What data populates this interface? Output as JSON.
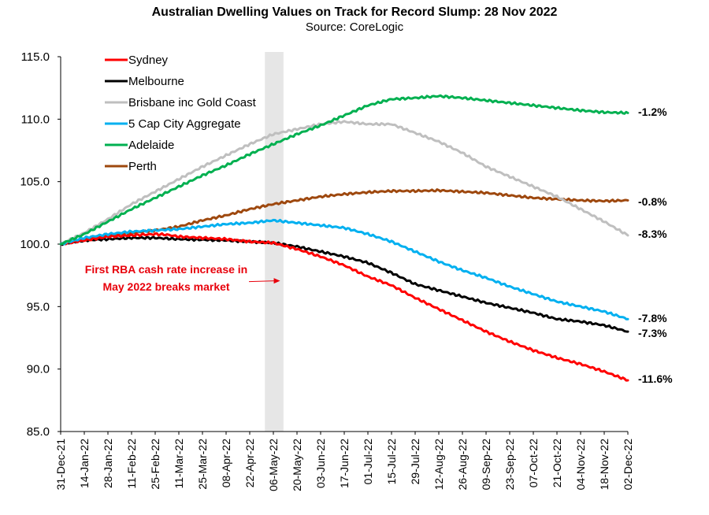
{
  "chart_data": {
    "type": "line",
    "title": "Australian Dwelling Values on Track for Record Slump: 28 Nov 2022",
    "subtitle": "Source: CoreLogic",
    "ylim": [
      85,
      115
    ],
    "yticks": [
      "85.0",
      "90.0",
      "95.0",
      "100.0",
      "105.0",
      "110.0",
      "115.0"
    ],
    "xrange_days": [
      0,
      336
    ],
    "xticks": [
      {
        "label": "31-Dec-21",
        "day": 0
      },
      {
        "label": "14-Jan-22",
        "day": 14
      },
      {
        "label": "28-Jan-22",
        "day": 28
      },
      {
        "label": "11-Feb-22",
        "day": 42
      },
      {
        "label": "25-Feb-22",
        "day": 56
      },
      {
        "label": "11-Mar-22",
        "day": 70
      },
      {
        "label": "25-Mar-22",
        "day": 84
      },
      {
        "label": "08-Apr-22",
        "day": 98
      },
      {
        "label": "22-Apr-22",
        "day": 112
      },
      {
        "label": "06-May-22",
        "day": 126
      },
      {
        "label": "20-May-22",
        "day": 140
      },
      {
        "label": "03-Jun-22",
        "day": 154
      },
      {
        "label": "17-Jun-22",
        "day": 168
      },
      {
        "label": "01-Jul-22",
        "day": 182
      },
      {
        "label": "15-Jul-22",
        "day": 196
      },
      {
        "label": "29-Jul-22",
        "day": 210
      },
      {
        "label": "12-Aug-22",
        "day": 224
      },
      {
        "label": "26-Aug-22",
        "day": 238
      },
      {
        "label": "09-Sep-22",
        "day": 252
      },
      {
        "label": "23-Sep-22",
        "day": 266
      },
      {
        "label": "07-Oct-22",
        "day": 280
      },
      {
        "label": "21-Oct-22",
        "day": 294
      },
      {
        "label": "04-Nov-22",
        "day": 308
      },
      {
        "label": "18-Nov-22",
        "day": 322
      },
      {
        "label": "02-Dec-22",
        "day": 336
      }
    ],
    "highlight_band_days": [
      121,
      132
    ],
    "annotation": {
      "line1": "First RBA cash rate increase in",
      "line2": "May 2022 breaks market",
      "arrow_to_day": 130,
      "arrow_at_value": 97.0
    },
    "series": [
      {
        "name": "Sydney",
        "color": "#ff0000",
        "end_label": "-11.6%",
        "points": [
          [
            0,
            100.0
          ],
          [
            14,
            100.3
          ],
          [
            28,
            100.6
          ],
          [
            42,
            100.7
          ],
          [
            56,
            100.8
          ],
          [
            63,
            100.75
          ],
          [
            70,
            100.6
          ],
          [
            84,
            100.5
          ],
          [
            98,
            100.4
          ],
          [
            105,
            100.3
          ],
          [
            112,
            100.2
          ],
          [
            126,
            100.1
          ],
          [
            140,
            99.6
          ],
          [
            154,
            99.0
          ],
          [
            168,
            98.3
          ],
          [
            182,
            97.4
          ],
          [
            196,
            96.7
          ],
          [
            210,
            95.7
          ],
          [
            224,
            94.8
          ],
          [
            238,
            93.9
          ],
          [
            252,
            93.0
          ],
          [
            266,
            92.2
          ],
          [
            280,
            91.5
          ],
          [
            294,
            90.9
          ],
          [
            308,
            90.4
          ],
          [
            322,
            89.8
          ],
          [
            336,
            89.1
          ]
        ]
      },
      {
        "name": "Melbourne",
        "color": "#000000",
        "end_label": "-7.3%",
        "points": [
          [
            0,
            100.0
          ],
          [
            14,
            100.3
          ],
          [
            28,
            100.4
          ],
          [
            42,
            100.5
          ],
          [
            56,
            100.5
          ],
          [
            70,
            100.4
          ],
          [
            84,
            100.35
          ],
          [
            98,
            100.3
          ],
          [
            112,
            100.2
          ],
          [
            126,
            100.1
          ],
          [
            140,
            99.8
          ],
          [
            154,
            99.4
          ],
          [
            168,
            99.0
          ],
          [
            182,
            98.5
          ],
          [
            196,
            97.7
          ],
          [
            210,
            96.8
          ],
          [
            224,
            96.3
          ],
          [
            238,
            95.8
          ],
          [
            252,
            95.3
          ],
          [
            266,
            94.9
          ],
          [
            280,
            94.5
          ],
          [
            294,
            94.0
          ],
          [
            308,
            93.8
          ],
          [
            322,
            93.5
          ],
          [
            336,
            93.0
          ]
        ]
      },
      {
        "name": "Brisbane inc Gold Coast",
        "color": "#bfbfbf",
        "end_label": "-8.3%",
        "points": [
          [
            0,
            100.0
          ],
          [
            14,
            100.9
          ],
          [
            28,
            102.0
          ],
          [
            42,
            103.2
          ],
          [
            56,
            104.2
          ],
          [
            70,
            105.2
          ],
          [
            84,
            106.2
          ],
          [
            98,
            107.1
          ],
          [
            112,
            108.0
          ],
          [
            126,
            108.8
          ],
          [
            140,
            109.2
          ],
          [
            154,
            109.6
          ],
          [
            168,
            109.8
          ],
          [
            182,
            109.6
          ],
          [
            196,
            109.6
          ],
          [
            210,
            108.9
          ],
          [
            224,
            108.2
          ],
          [
            238,
            107.3
          ],
          [
            252,
            106.2
          ],
          [
            266,
            105.4
          ],
          [
            280,
            104.6
          ],
          [
            294,
            103.8
          ],
          [
            308,
            102.8
          ],
          [
            322,
            101.8
          ],
          [
            336,
            100.7
          ]
        ]
      },
      {
        "name": "5 Cap City Aggregate",
        "color": "#00b0f0",
        "end_label": "-7.8%",
        "points": [
          [
            0,
            100.0
          ],
          [
            14,
            100.5
          ],
          [
            28,
            100.8
          ],
          [
            42,
            101.0
          ],
          [
            56,
            101.1
          ],
          [
            70,
            101.2
          ],
          [
            84,
            101.4
          ],
          [
            98,
            101.6
          ],
          [
            112,
            101.7
          ],
          [
            126,
            101.9
          ],
          [
            140,
            101.7
          ],
          [
            154,
            101.5
          ],
          [
            168,
            101.3
          ],
          [
            182,
            100.8
          ],
          [
            196,
            100.2
          ],
          [
            210,
            99.4
          ],
          [
            224,
            98.6
          ],
          [
            238,
            97.9
          ],
          [
            252,
            97.3
          ],
          [
            266,
            96.6
          ],
          [
            280,
            96.0
          ],
          [
            294,
            95.4
          ],
          [
            308,
            95.0
          ],
          [
            322,
            94.6
          ],
          [
            336,
            94.0
          ]
        ]
      },
      {
        "name": "Adelaide",
        "color": "#00b050",
        "end_label": "-1.2%",
        "points": [
          [
            0,
            100.0
          ],
          [
            14,
            100.8
          ],
          [
            28,
            101.8
          ],
          [
            42,
            102.8
          ],
          [
            56,
            103.7
          ],
          [
            70,
            104.6
          ],
          [
            84,
            105.5
          ],
          [
            98,
            106.3
          ],
          [
            112,
            107.2
          ],
          [
            126,
            108.0
          ],
          [
            140,
            108.8
          ],
          [
            154,
            109.5
          ],
          [
            168,
            110.3
          ],
          [
            182,
            111.1
          ],
          [
            196,
            111.6
          ],
          [
            210,
            111.7
          ],
          [
            224,
            111.85
          ],
          [
            238,
            111.7
          ],
          [
            252,
            111.5
          ],
          [
            266,
            111.3
          ],
          [
            280,
            111.1
          ],
          [
            294,
            110.9
          ],
          [
            308,
            110.7
          ],
          [
            322,
            110.55
          ],
          [
            336,
            110.5
          ]
        ]
      },
      {
        "name": "Perth",
        "color": "#9e480e",
        "end_label": "-0.8%",
        "points": [
          [
            0,
            100.0
          ],
          [
            14,
            100.4
          ],
          [
            28,
            100.7
          ],
          [
            42,
            100.9
          ],
          [
            56,
            101.1
          ],
          [
            70,
            101.4
          ],
          [
            84,
            101.9
          ],
          [
            98,
            102.3
          ],
          [
            112,
            102.8
          ],
          [
            126,
            103.2
          ],
          [
            140,
            103.5
          ],
          [
            154,
            103.8
          ],
          [
            168,
            104.0
          ],
          [
            182,
            104.15
          ],
          [
            196,
            104.25
          ],
          [
            210,
            104.25
          ],
          [
            224,
            104.3
          ],
          [
            238,
            104.2
          ],
          [
            252,
            104.1
          ],
          [
            266,
            103.9
          ],
          [
            280,
            103.7
          ],
          [
            294,
            103.6
          ],
          [
            308,
            103.5
          ],
          [
            322,
            103.45
          ],
          [
            336,
            103.5
          ]
        ]
      }
    ]
  }
}
